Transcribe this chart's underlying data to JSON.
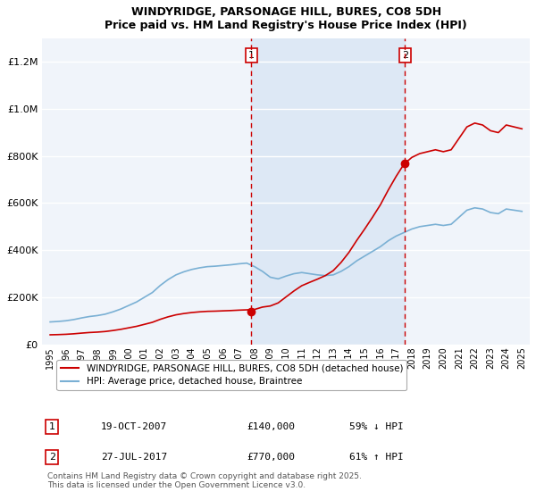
{
  "title": "WINDYRIDGE, PARSONAGE HILL, BURES, CO8 5DH",
  "subtitle": "Price paid vs. HM Land Registry's House Price Index (HPI)",
  "red_label": "WINDYRIDGE, PARSONAGE HILL, BURES, CO8 5DH (detached house)",
  "blue_label": "HPI: Average price, detached house, Braintree",
  "footnote": "Contains HM Land Registry data © Crown copyright and database right 2025.\nThis data is licensed under the Open Government Licence v3.0.",
  "sale1_label": "1",
  "sale1_date": "19-OCT-2007",
  "sale1_price": "£140,000",
  "sale1_hpi": "59% ↓ HPI",
  "sale2_label": "2",
  "sale2_date": "27-JUL-2017",
  "sale2_price": "£770,000",
  "sale2_hpi": "61% ↑ HPI",
  "sale1_x": 2007.8,
  "sale1_y_red": 140000,
  "sale2_x": 2017.57,
  "sale2_y_red": 770000,
  "vline1_x": 2007.8,
  "vline2_x": 2017.57,
  "ylim": [
    0,
    1300000
  ],
  "xlim": [
    1994.5,
    2025.5
  ],
  "bg_color": "#f0f4fa",
  "plot_bg": "#f0f4fa",
  "grid_color": "#ffffff",
  "red_color": "#cc0000",
  "blue_color": "#7ab0d4"
}
